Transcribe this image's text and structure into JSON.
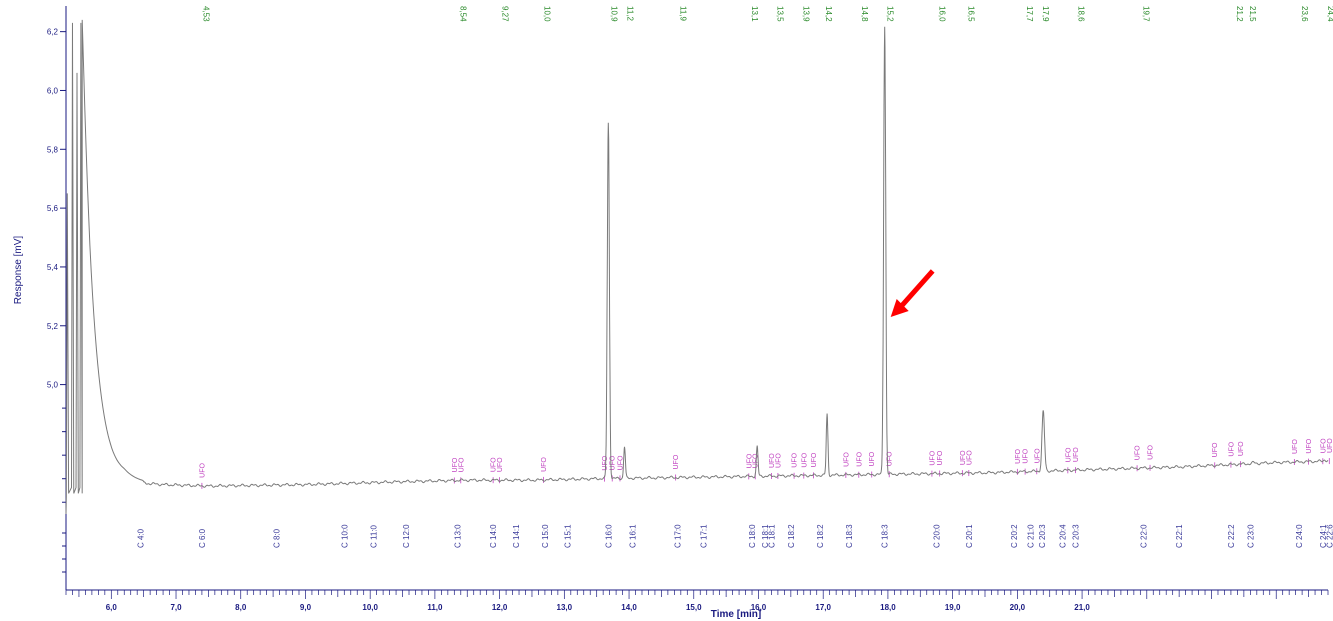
{
  "chart_data": {
    "type": "line",
    "ylabel": "Response [mV]",
    "xlabel": "Time [min]",
    "y_ticks": [
      "6,2",
      "6,0",
      "5,8",
      "5,6",
      "5,4",
      "5,2",
      "5,0"
    ],
    "y_tick_values": [
      6.2,
      6.0,
      5.8,
      5.6,
      5.4,
      5.2,
      5.0
    ],
    "x_ticks": [
      "6,0",
      "7,0",
      "8,0",
      "9,0",
      "10,0",
      "11,0",
      "12,0",
      "13,0",
      "14,0",
      "15,0",
      "16,0",
      "17,0",
      "18,0",
      "19,0",
      "20,0",
      "21,0"
    ],
    "x_tick_values": [
      6,
      7,
      8,
      9,
      10,
      11,
      12,
      13,
      14,
      15,
      16,
      17,
      18,
      19,
      20,
      21
    ],
    "xlim": [
      5.3,
      24.8
    ],
    "ylim": [
      4.56,
      6.26
    ],
    "baseline": [
      [
        5.3,
        4.56
      ],
      [
        5.6,
        4.62
      ],
      [
        6.2,
        4.67
      ],
      [
        6.8,
        4.66
      ],
      [
        7.5,
        4.655
      ],
      [
        9,
        4.66
      ],
      [
        10.5,
        4.67
      ],
      [
        11.5,
        4.675
      ],
      [
        12.5,
        4.675
      ],
      [
        13.5,
        4.68
      ],
      [
        15,
        4.685
      ],
      [
        16.5,
        4.69
      ],
      [
        18,
        4.695
      ],
      [
        19.5,
        4.7
      ],
      [
        21,
        4.71
      ],
      [
        22.5,
        4.72
      ],
      [
        24,
        4.735
      ],
      [
        24.8,
        4.74
      ]
    ],
    "solvent": {
      "peak_x": [
        5.32,
        5.4,
        5.47,
        5.53
      ],
      "peak_y": [
        5.65,
        6.23,
        6.06,
        6.23
      ],
      "decay_to_x": 6.5
    },
    "peaks": [
      {
        "t": 13.68,
        "h": 5.89,
        "w": 0.05
      },
      {
        "t": 13.93,
        "h": 4.79,
        "w": 0.04
      },
      {
        "t": 15.98,
        "h": 4.79,
        "w": 0.04
      },
      {
        "t": 17.06,
        "h": 4.9,
        "w": 0.04
      },
      {
        "t": 17.95,
        "h": 6.22,
        "w": 0.05
      },
      {
        "t": 20.4,
        "h": 4.91,
        "w": 0.06
      },
      {
        "t": 23.65,
        "h": 4.735,
        "w": 0.06
      },
      {
        "t": 24.75,
        "h": 4.745,
        "w": 0.05
      }
    ],
    "rt_labels": [
      {
        "t": 7.38,
        "label": "4,53"
      },
      {
        "t": 11.35,
        "label": "8,54"
      },
      {
        "t": 12.0,
        "label": "9,27"
      },
      {
        "t": 12.65,
        "label": "10,0"
      },
      {
        "t": 13.68,
        "label": "10,9"
      },
      {
        "t": 13.93,
        "label": "11,2"
      },
      {
        "t": 14.75,
        "label": "11,9"
      },
      {
        "t": 15.85,
        "label": "13,1"
      },
      {
        "t": 16.25,
        "label": "13,5"
      },
      {
        "t": 16.65,
        "label": "13,9"
      },
      {
        "t": 17.0,
        "label": "14,2"
      },
      {
        "t": 17.55,
        "label": "14,8"
      },
      {
        "t": 17.95,
        "label": "15,2"
      },
      {
        "t": 18.75,
        "label": "16,0"
      },
      {
        "t": 19.2,
        "label": "16,5"
      },
      {
        "t": 20.1,
        "label": "17,7"
      },
      {
        "t": 20.35,
        "label": "17,9"
      },
      {
        "t": 20.9,
        "label": "18,6"
      },
      {
        "t": 21.9,
        "label": "19,7"
      },
      {
        "t": 23.35,
        "label": "21,2"
      },
      {
        "t": 23.55,
        "label": "21,5"
      },
      {
        "t": 24.35,
        "label": "23,6"
      },
      {
        "t": 24.75,
        "label": "24,4"
      }
    ],
    "component_labels": [
      {
        "t": 6.45,
        "label": "C 4:0"
      },
      {
        "t": 7.4,
        "label": "C 6:0"
      },
      {
        "t": 8.55,
        "label": "C 8:0"
      },
      {
        "t": 9.6,
        "label": "C 10:0"
      },
      {
        "t": 10.05,
        "label": "C 11:0"
      },
      {
        "t": 10.55,
        "label": "C 12:0"
      },
      {
        "t": 11.35,
        "label": "C 13:0"
      },
      {
        "t": 11.9,
        "label": "C 14:0"
      },
      {
        "t": 12.25,
        "label": "C 14:1"
      },
      {
        "t": 12.7,
        "label": "C 15:0"
      },
      {
        "t": 13.05,
        "label": "C 15:1"
      },
      {
        "t": 13.68,
        "label": "C 16:0"
      },
      {
        "t": 14.05,
        "label": "C 16:1"
      },
      {
        "t": 14.75,
        "label": "C 17:0"
      },
      {
        "t": 15.15,
        "label": "C 17:1"
      },
      {
        "t": 15.9,
        "label": "C 18:0"
      },
      {
        "t": 16.1,
        "label": "C 18:1"
      },
      {
        "t": 16.2,
        "label": "C 18:1"
      },
      {
        "t": 16.5,
        "label": "C 18:2"
      },
      {
        "t": 16.95,
        "label": "C 18:2"
      },
      {
        "t": 17.4,
        "label": "C 18:3"
      },
      {
        "t": 17.95,
        "label": "C 18:3"
      },
      {
        "t": 18.75,
        "label": "C 20:0"
      },
      {
        "t": 19.25,
        "label": "C 20:1"
      },
      {
        "t": 19.95,
        "label": "C 20:2"
      },
      {
        "t": 20.2,
        "label": "C 21:0"
      },
      {
        "t": 20.38,
        "label": "C 20:3"
      },
      {
        "t": 20.7,
        "label": "C 20:4"
      },
      {
        "t": 20.9,
        "label": "C 20:3"
      },
      {
        "t": 21.95,
        "label": "C 22:0"
      },
      {
        "t": 22.5,
        "label": "C 22:1"
      },
      {
        "t": 23.3,
        "label": "C 22:2"
      },
      {
        "t": 23.6,
        "label": "C 23:0"
      },
      {
        "t": 24.35,
        "label": "C 24:0"
      },
      {
        "t": 24.72,
        "label": "C 24:1"
      },
      {
        "t": 24.82,
        "label": "C 22:6"
      }
    ],
    "ufo_labels": [
      {
        "t": 7.4,
        "label": "UFO"
      },
      {
        "t": 11.3,
        "label": "UFO"
      },
      {
        "t": 11.4,
        "label": "UFO"
      },
      {
        "t": 11.9,
        "label": "UFO"
      },
      {
        "t": 12.0,
        "label": "UFO"
      },
      {
        "t": 12.68,
        "label": "UFO"
      },
      {
        "t": 13.62,
        "label": "UFO"
      },
      {
        "t": 13.74,
        "label": "UFO"
      },
      {
        "t": 13.86,
        "label": "UFO"
      },
      {
        "t": 14.72,
        "label": "UFO"
      },
      {
        "t": 15.85,
        "label": "UFO"
      },
      {
        "t": 15.95,
        "label": "UFO"
      },
      {
        "t": 16.2,
        "label": "UFO"
      },
      {
        "t": 16.3,
        "label": "UFO"
      },
      {
        "t": 16.55,
        "label": "UFO"
      },
      {
        "t": 16.7,
        "label": "UFO"
      },
      {
        "t": 16.85,
        "label": "UFO"
      },
      {
        "t": 17.35,
        "label": "UFO"
      },
      {
        "t": 17.55,
        "label": "UFO"
      },
      {
        "t": 17.75,
        "label": "UFO"
      },
      {
        "t": 18.02,
        "label": "UFO"
      },
      {
        "t": 18.68,
        "label": "UFO"
      },
      {
        "t": 18.8,
        "label": "UFO"
      },
      {
        "t": 19.15,
        "label": "UFO"
      },
      {
        "t": 19.25,
        "label": "UFO"
      },
      {
        "t": 20.0,
        "label": "UFO"
      },
      {
        "t": 20.12,
        "label": "UFO"
      },
      {
        "t": 20.3,
        "label": "UFO"
      },
      {
        "t": 20.78,
        "label": "UFO"
      },
      {
        "t": 20.9,
        "label": "UFO"
      },
      {
        "t": 21.85,
        "label": "UFO"
      },
      {
        "t": 22.05,
        "label": "UFO"
      },
      {
        "t": 23.05,
        "label": "UFO"
      },
      {
        "t": 23.3,
        "label": "UFO"
      },
      {
        "t": 23.45,
        "label": "UFO"
      },
      {
        "t": 24.28,
        "label": "UFO"
      },
      {
        "t": 24.5,
        "label": "UFO"
      },
      {
        "t": 24.72,
        "label": "UFO"
      },
      {
        "t": 24.82,
        "label": "UFO"
      }
    ],
    "annotation": {
      "type": "arrow",
      "color": "#ff0000",
      "points_to_t": 17.95,
      "points_to_y": 5.23
    },
    "colors": {
      "trace": "#7a7a7a",
      "axis": "#1a1a80",
      "rt_label": "#2a8a2a",
      "component": "#3a3a9a",
      "ufo": "#c040c0"
    },
    "grid": false
  }
}
